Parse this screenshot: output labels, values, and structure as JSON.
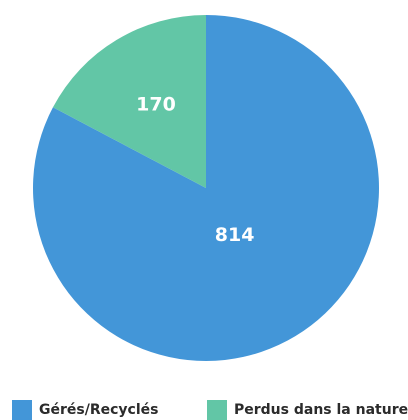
{
  "chart_data": {
    "type": "pie",
    "categories": [
      "Gérés/Recyclés",
      "Perdus dans la nature"
    ],
    "values": [
      814,
      170
    ],
    "value_labels": [
      "814",
      "170"
    ],
    "colors": [
      "#4396d8",
      "#62c6a6"
    ],
    "legend_placement": "bottom",
    "title": ""
  },
  "legend": {
    "items": [
      {
        "label": "Gérés/Recyclés",
        "color": "#4396d8"
      },
      {
        "label": "Perdus dans la nature",
        "color": "#62c6a6"
      }
    ]
  }
}
